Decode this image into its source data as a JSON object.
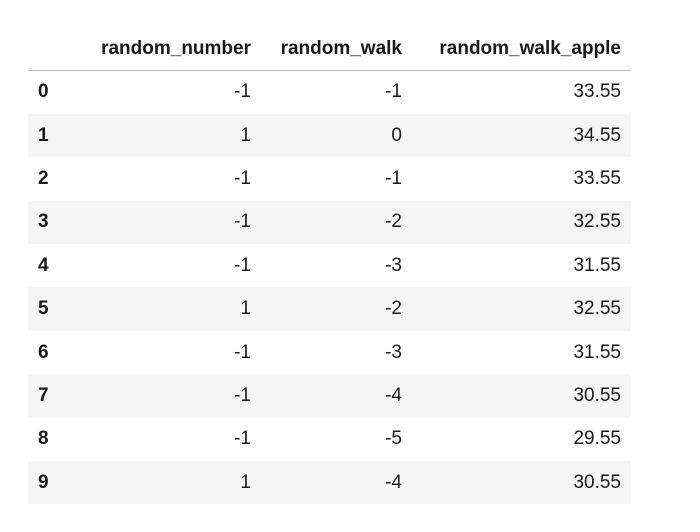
{
  "table": {
    "index_header": "",
    "columns": [
      "random_number",
      "random_walk",
      "random_walk_apple"
    ],
    "rows": [
      {
        "index": "0",
        "random_number": "-1",
        "random_walk": "-1",
        "random_walk_apple": "33.55"
      },
      {
        "index": "1",
        "random_number": "1",
        "random_walk": "0",
        "random_walk_apple": "34.55"
      },
      {
        "index": "2",
        "random_number": "-1",
        "random_walk": "-1",
        "random_walk_apple": "33.55"
      },
      {
        "index": "3",
        "random_number": "-1",
        "random_walk": "-2",
        "random_walk_apple": "32.55"
      },
      {
        "index": "4",
        "random_number": "-1",
        "random_walk": "-3",
        "random_walk_apple": "31.55"
      },
      {
        "index": "5",
        "random_number": "1",
        "random_walk": "-2",
        "random_walk_apple": "32.55"
      },
      {
        "index": "6",
        "random_number": "-1",
        "random_walk": "-3",
        "random_walk_apple": "31.55"
      },
      {
        "index": "7",
        "random_number": "-1",
        "random_walk": "-4",
        "random_walk_apple": "30.55"
      },
      {
        "index": "8",
        "random_number": "-1",
        "random_walk": "-5",
        "random_walk_apple": "29.55"
      },
      {
        "index": "9",
        "random_number": "1",
        "random_walk": "-4",
        "random_walk_apple": "30.55"
      }
    ]
  },
  "colors": {
    "row_stripe": "#f5f5f5",
    "header_rule": "#b8b8b8",
    "text": "#1a1a1a"
  }
}
